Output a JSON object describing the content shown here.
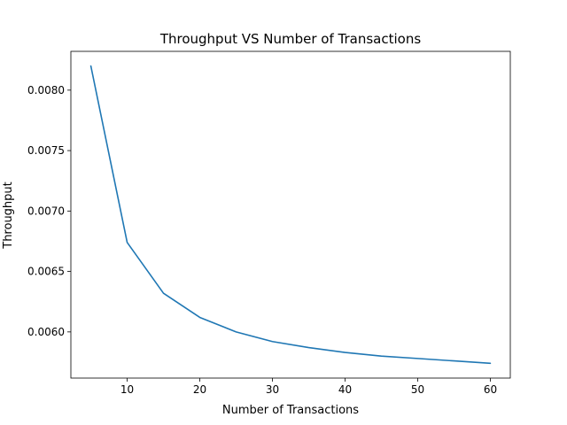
{
  "chart_data": {
    "type": "line",
    "title": "Throughput VS Number of Transactions",
    "xlabel": "Number of Transactions",
    "ylabel": "Throughput",
    "xlim": [
      2.25,
      62.75
    ],
    "ylim": [
      0.005618,
      0.008321
    ],
    "xticks": [
      10,
      20,
      30,
      40,
      50,
      60
    ],
    "xtick_labels": [
      "10",
      "20",
      "30",
      "40",
      "50",
      "60"
    ],
    "yticks": [
      0.006,
      0.0065,
      0.007,
      0.0075,
      0.008
    ],
    "ytick_labels": [
      "0.0060",
      "0.0065",
      "0.0070",
      "0.0075",
      "0.0080"
    ],
    "grid": false,
    "series": [
      {
        "color": "#1f77b4",
        "x": [
          5,
          10,
          15,
          20,
          25,
          30,
          35,
          40,
          45,
          50,
          55,
          60
        ],
        "y": [
          0.0082,
          0.00674,
          0.00632,
          0.00612,
          0.006,
          0.00592,
          0.00587,
          0.00583,
          0.0058,
          0.00578,
          0.00576,
          0.00574
        ]
      }
    ]
  }
}
